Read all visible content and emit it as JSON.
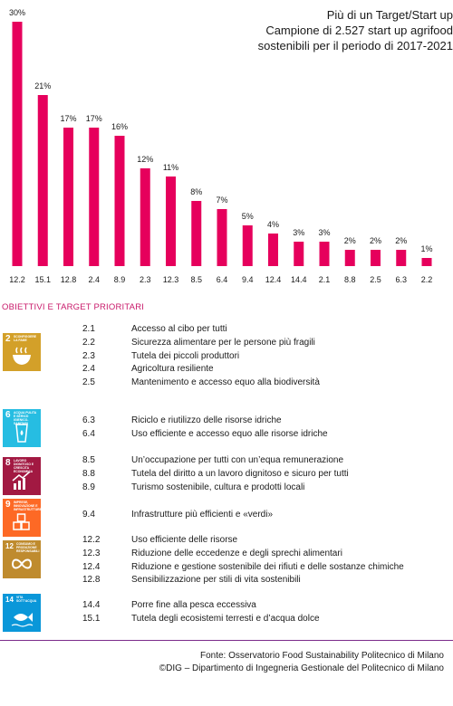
{
  "chart_title": [
    "Più di un Target/Start up",
    "Campione di 2.527 start up agrifood",
    "sostenibili per il periodo di 2017-2021"
  ],
  "chart_data": {
    "type": "bar",
    "categories": [
      "12.2",
      "15.1",
      "12.8",
      "2.4",
      "8.9",
      "2.3",
      "12.3",
      "8.5",
      "6.4",
      "9.4",
      "12.4",
      "14.4",
      "2.1",
      "8.8",
      "2.5",
      "6.3",
      "2.2"
    ],
    "values": [
      30,
      21,
      17,
      17,
      16,
      12,
      11,
      8,
      7,
      5,
      4,
      3,
      3,
      2,
      2,
      2,
      1
    ],
    "value_labels": [
      "30%",
      "21%",
      "17%",
      "17%",
      "16%",
      "12%",
      "11%",
      "8%",
      "7%",
      "5%",
      "4%",
      "3%",
      "3%",
      "2%",
      "2%",
      "2%",
      "1%"
    ],
    "ylim": [
      0,
      30
    ],
    "bar_color": "#e6005c",
    "grid": false
  },
  "section_title": "OBIETTIVI E TARGET PRIORITARI",
  "goals": [
    {
      "number": "2",
      "name": "Sconfiggere la fame",
      "color": "#d3a029",
      "icon": "food-bowl-icon",
      "targets": [
        {
          "code": "2.1",
          "label": "Accesso al cibo per tutti"
        },
        {
          "code": "2.2",
          "label": "Sicurezza alimentare per le persone più fragili"
        },
        {
          "code": "2.3",
          "label": "Tutela dei piccoli produttori"
        },
        {
          "code": "2.4",
          "label": "Agricoltura resiliente"
        },
        {
          "code": "2.5",
          "label": "Mantenimento e accesso equo alla biodiversità"
        }
      ]
    },
    {
      "number": "6",
      "name": "Acqua pulita e servizi igienico-sanitari",
      "color": "#26bde2",
      "icon": "water-glass-icon",
      "targets": [
        {
          "code": "6.3",
          "label": "Riciclo e riutilizzo delle risorse idriche"
        },
        {
          "code": "6.4",
          "label": "Uso efficiente e accesso equo alle risorse idriche"
        }
      ]
    },
    {
      "number": "8",
      "name": "Lavoro dignitoso e crescita economica",
      "color": "#a21942",
      "icon": "growth-chart-icon",
      "targets": [
        {
          "code": "8.5",
          "label": "Un’occupazione per tutti con un’equa remunerazione"
        },
        {
          "code": "8.8",
          "label": "Tutela del diritto a un lavoro dignitoso e sicuro per tutti"
        },
        {
          "code": "8.9",
          "label": "Turismo sostenibile, cultura e prodotti locali"
        }
      ]
    },
    {
      "number": "9",
      "name": "Imprese, innovazione e infrastrutture",
      "color": "#fd6925",
      "icon": "cubes-icon",
      "targets": [
        {
          "code": "9.4",
          "label": "Infrastrutture più efficienti e «verdi»"
        }
      ]
    },
    {
      "number": "12",
      "name": "Consumo e produzione responsabili",
      "color": "#bf8b2e",
      "icon": "infinity-icon",
      "targets": [
        {
          "code": "12.2",
          "label": "Uso efficiente delle risorse"
        },
        {
          "code": "12.3",
          "label": "Riduzione delle eccedenze e degli sprechi alimentari"
        },
        {
          "code": "12.4",
          "label": "Riduzione e gestione sostenibile dei rifiuti e delle sostanze chimiche"
        },
        {
          "code": "12.8",
          "label": "Sensibilizzazione per stili di vita sostenibili"
        }
      ]
    },
    {
      "number": "14",
      "name": "Vita sott'acqua",
      "color": "#0a97d9",
      "icon": "fish-icon",
      "targets": [
        {
          "code": "14.4",
          "label": "Porre fine alla pesca eccessiva"
        },
        {
          "code": "15.1",
          "label": "Tutela degli ecosistemi terresti e d’acqua dolce"
        }
      ]
    }
  ],
  "footer": [
    "Fonte: Osservatorio Food Sustainability Politecnico di Milano",
    "©DIG – Dipartimento di Ingegneria Gestionale del Politecnico di Milano"
  ]
}
